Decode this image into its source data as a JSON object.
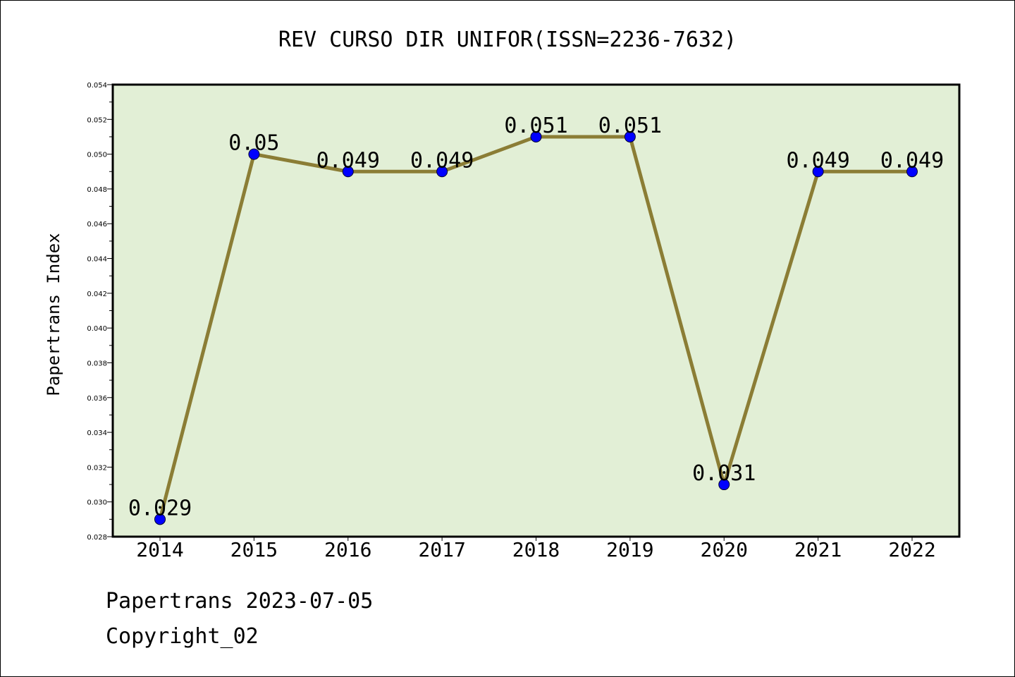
{
  "chart_data": {
    "type": "line",
    "title": "REV CURSO DIR UNIFOR(ISSN=2236-7632)",
    "xlabel": "",
    "ylabel": "Papertrans Index",
    "categories": [
      "2014",
      "2015",
      "2016",
      "2017",
      "2018",
      "2019",
      "2020",
      "2021",
      "2022"
    ],
    "series": [
      {
        "values": [
          0.029,
          0.05,
          0.049,
          0.049,
          0.051,
          0.051,
          0.031,
          0.049,
          0.049
        ],
        "labels": [
          "0.029",
          "0.05",
          "0.049",
          "0.049",
          "0.051",
          "0.051",
          "0.031",
          "0.049",
          "0.049"
        ]
      }
    ],
    "ylim": [
      0.028,
      0.054
    ],
    "yticks": [
      "0.028",
      "0.030",
      "0.032",
      "0.034",
      "0.036",
      "0.038",
      "0.040",
      "0.042",
      "0.044",
      "0.046",
      "0.048",
      "0.050",
      "0.052",
      "0.054"
    ],
    "grid": false,
    "legend": "none"
  },
  "colors": {
    "plot_background": "#e2efd6",
    "line": "#8b7d35",
    "marker": "#0000ff"
  },
  "footer": {
    "line1": "Papertrans 2023-07-05",
    "line2": "Copyright_02"
  }
}
